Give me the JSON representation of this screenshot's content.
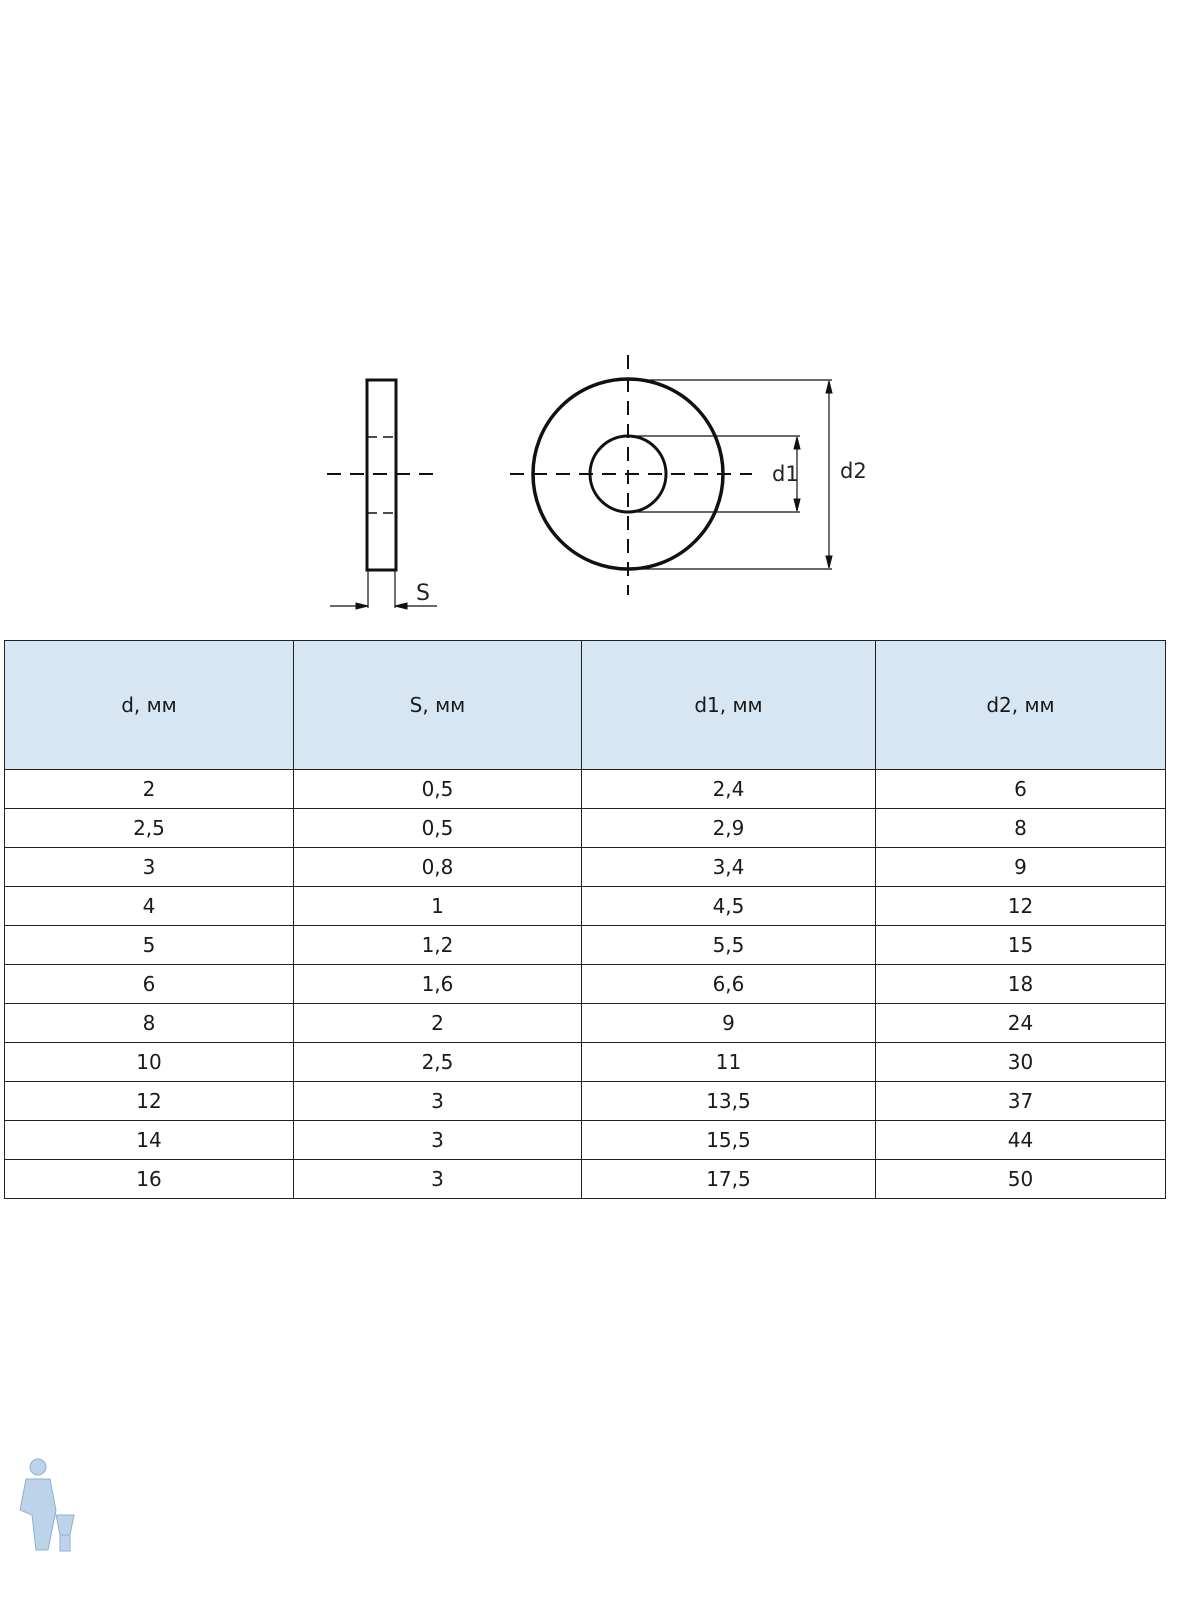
{
  "drawing": {
    "labels": {
      "s": "S",
      "d1": "d1",
      "d2": "d2"
    }
  },
  "table": {
    "header_color": "#d6e6f3",
    "columns": [
      "d, мм",
      "S, мм",
      "d1, мм",
      "d2, мм"
    ],
    "rows": [
      [
        "2",
        "0,5",
        "2,4",
        "6"
      ],
      [
        "2,5",
        "0,5",
        "2,9",
        "8"
      ],
      [
        "3",
        "0,8",
        "3,4",
        "9"
      ],
      [
        "4",
        "1",
        "4,5",
        "12"
      ],
      [
        "5",
        "1,2",
        "5,5",
        "15"
      ],
      [
        "6",
        "1,6",
        "6,6",
        "18"
      ],
      [
        "8",
        "2",
        "9",
        "24"
      ],
      [
        "10",
        "2,5",
        "11",
        "30"
      ],
      [
        "12",
        "3",
        "13,5",
        "37"
      ],
      [
        "14",
        "3",
        "15,5",
        "44"
      ],
      [
        "16",
        "3",
        "17,5",
        "50"
      ]
    ]
  }
}
